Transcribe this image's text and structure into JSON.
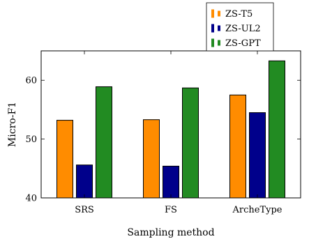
{
  "chart_data": {
    "type": "bar",
    "categories": [
      "SRS",
      "FS",
      "ArcheType"
    ],
    "series": [
      {
        "name": "ZS-T5",
        "color": "#ff8c00",
        "values": [
          53.2,
          53.3,
          57.5
        ]
      },
      {
        "name": "ZS-UL2",
        "color": "#00008b",
        "values": [
          45.6,
          45.4,
          54.5
        ]
      },
      {
        "name": "ZS-GPT",
        "color": "#228b22",
        "values": [
          58.9,
          58.7,
          63.3
        ]
      }
    ],
    "xlabel": "Sampling method",
    "ylabel": "Micro-F1",
    "ylim": [
      40,
      65
    ],
    "yticks": [
      40,
      50,
      60
    ],
    "grid": false,
    "legend": "top-right, outside above plot"
  }
}
